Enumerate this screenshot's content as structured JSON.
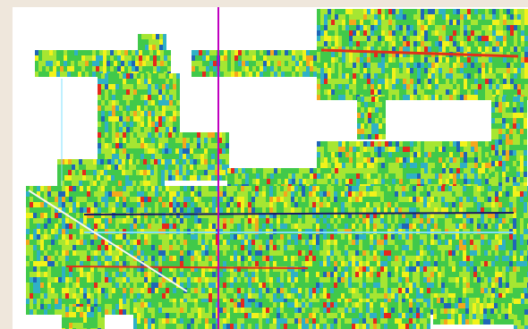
{
  "viewer": {
    "background_color": "#efe7dc",
    "canvas_color": "#ffffff",
    "cursor_line_color": "#c000c0",
    "palette": [
      "#1f66b8",
      "#2fb1c6",
      "#41c94a",
      "#a6e632",
      "#f2f21b",
      "#f4a71c",
      "#e5281c"
    ],
    "trace_colors": {
      "dark_track": "#1a1a66",
      "red_track": "#e0301a",
      "light_track": "#7fe0ff",
      "diagonal": "#f6f6f6"
    },
    "cursor_icon": "vertical-crosshair-line"
  }
}
